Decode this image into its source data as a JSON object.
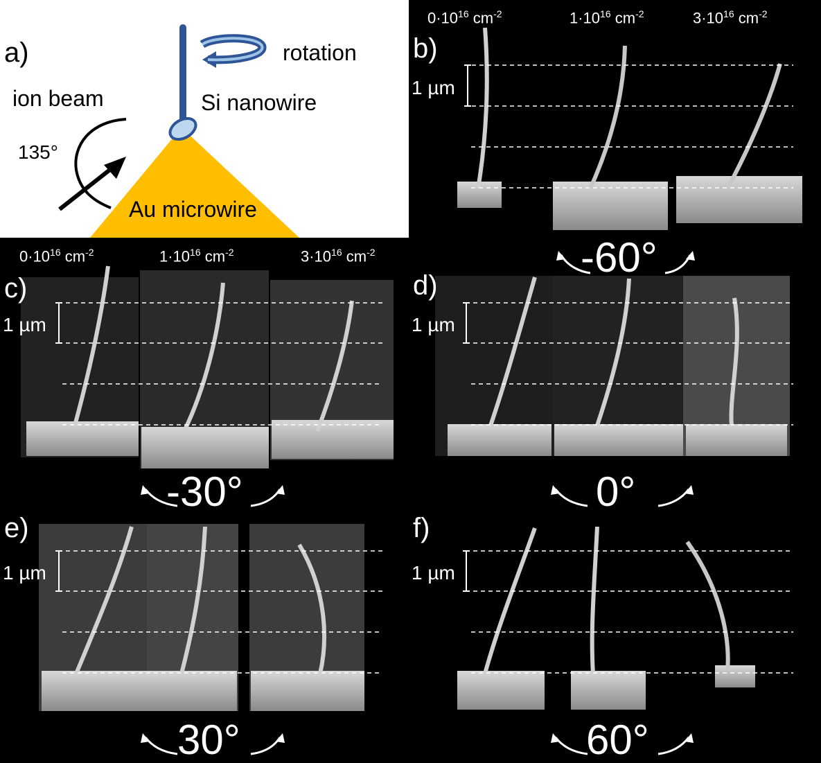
{
  "panel_a": {
    "label": "a)",
    "rotation": "rotation",
    "ion_beam": "ion beam",
    "angle": "135°",
    "nanowire": "Si nanowire",
    "microwire": "Au microwire",
    "colors": {
      "microwire": "#FFBF00",
      "nanowire": "#2F5597",
      "arrow": "#000000"
    }
  },
  "doses": {
    "d0": "0·10",
    "d1": "1·10",
    "d3": "3·10",
    "exp": "16",
    "unit": "cm",
    "unit_exp": "-2"
  },
  "scale": "1 µm",
  "panels": {
    "b": {
      "label": "b)",
      "angle": "-60°"
    },
    "c": {
      "label": "c)",
      "angle": "-30°"
    },
    "d": {
      "label": "d)",
      "angle": "0°"
    },
    "e": {
      "label": "e)",
      "angle": "30°"
    },
    "f": {
      "label": "f)",
      "angle": "60°"
    }
  }
}
